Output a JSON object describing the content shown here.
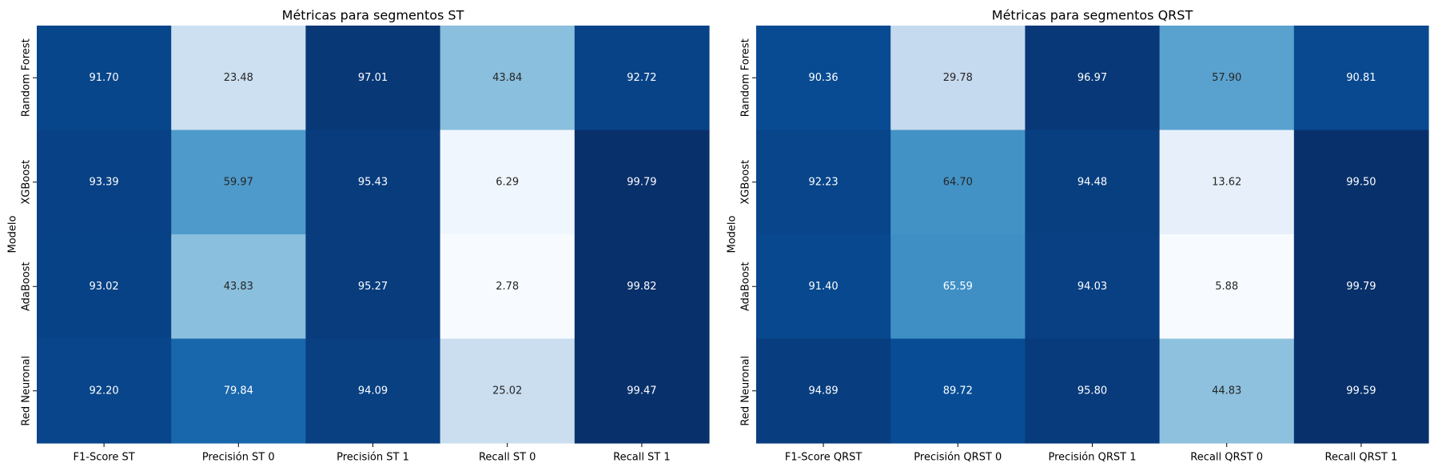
{
  "chart_data": [
    {
      "type": "heatmap",
      "title": "Métricas para segmentos ST",
      "ylabel": "Modelo",
      "xlabel": "",
      "rows": [
        "Random Forest",
        "XGBoost",
        "AdaBoost",
        "Red Neuronal"
      ],
      "columns": [
        "F1-Score ST",
        "Precisión ST 0",
        "Precisión ST 1",
        "Recall ST 0",
        "Recall ST 1"
      ],
      "values": [
        [
          91.7,
          23.48,
          97.01,
          43.84,
          92.72
        ],
        [
          93.39,
          59.97,
          95.43,
          6.29,
          99.79
        ],
        [
          93.02,
          43.83,
          95.27,
          2.78,
          99.82
        ],
        [
          92.2,
          79.84,
          94.09,
          25.02,
          99.47
        ]
      ],
      "value_format": "2 decimals",
      "colormap": "Blues",
      "colorbar": false
    },
    {
      "type": "heatmap",
      "title": "Métricas para segmentos QRST",
      "ylabel": "Modelo",
      "xlabel": "",
      "rows": [
        "Random Forest",
        "XGBoost",
        "AdaBoost",
        "Red Neuronal"
      ],
      "columns": [
        "F1-Score QRST",
        "Precisión QRST 0",
        "Precisión QRST 1",
        "Recall QRST 0",
        "Recall QRST 1"
      ],
      "values": [
        [
          90.36,
          29.78,
          96.97,
          57.9,
          90.81
        ],
        [
          92.23,
          64.7,
          94.48,
          13.62,
          99.5
        ],
        [
          91.4,
          65.59,
          94.03,
          5.88,
          99.79
        ],
        [
          94.89,
          89.72,
          95.8,
          44.83,
          99.59
        ]
      ],
      "value_format": "2 decimals",
      "colormap": "Blues",
      "colorbar": false
    }
  ]
}
